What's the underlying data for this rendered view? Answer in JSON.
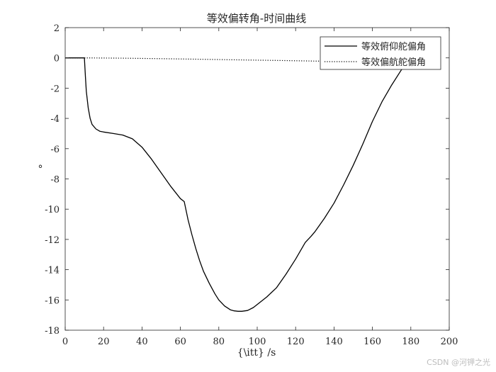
{
  "chart_data": {
    "type": "line",
    "title": "等效偏转角-时间曲线",
    "xlabel": "{\\itt} /s",
    "ylabel": "°",
    "xlim": [
      0,
      200
    ],
    "ylim": [
      -18,
      2
    ],
    "xticks": [
      0,
      20,
      40,
      60,
      80,
      100,
      120,
      140,
      160,
      180,
      200
    ],
    "yticks": [
      2,
      0,
      -2,
      -4,
      -6,
      -8,
      -10,
      -12,
      -14,
      -16,
      -18
    ],
    "grid": false,
    "legend_position": "top-right",
    "series": [
      {
        "name": "等效俯仰舵偏角",
        "style": "solid",
        "color": "#000000",
        "x": [
          0,
          10,
          10.5,
          11,
          12,
          13,
          14,
          16,
          18,
          20,
          25,
          30,
          35,
          40,
          45,
          50,
          55,
          60,
          62,
          64,
          66,
          68,
          70,
          72,
          75,
          78,
          80,
          83,
          86,
          88,
          90,
          92,
          95,
          98,
          100,
          105,
          110,
          115,
          120,
          125,
          128,
          130,
          135,
          140,
          145,
          150,
          155,
          160,
          165,
          170,
          175,
          178
        ],
        "y": [
          0,
          0,
          -1.2,
          -2.2,
          -3.3,
          -4.0,
          -4.4,
          -4.7,
          -4.85,
          -4.9,
          -5.0,
          -5.1,
          -5.35,
          -5.9,
          -6.7,
          -7.6,
          -8.5,
          -9.3,
          -9.5,
          -10.7,
          -11.7,
          -12.6,
          -13.4,
          -14.1,
          -14.9,
          -15.6,
          -16.0,
          -16.4,
          -16.65,
          -16.72,
          -16.75,
          -16.75,
          -16.7,
          -16.5,
          -16.3,
          -15.8,
          -15.2,
          -14.3,
          -13.3,
          -12.2,
          -11.8,
          -11.5,
          -10.6,
          -9.6,
          -8.4,
          -7.1,
          -5.7,
          -4.2,
          -2.9,
          -1.8,
          -0.8,
          -0.3
        ]
      },
      {
        "name": "等效偏航舵偏角",
        "style": "dotted",
        "color": "#000000",
        "x": [
          0,
          10,
          30,
          50,
          70,
          90,
          110,
          130,
          150,
          170,
          180
        ],
        "y": [
          0,
          0,
          -0.02,
          -0.05,
          -0.09,
          -0.13,
          -0.17,
          -0.21,
          -0.25,
          -0.28,
          -0.3
        ]
      }
    ]
  },
  "watermark": "CSDN @河钾之光"
}
